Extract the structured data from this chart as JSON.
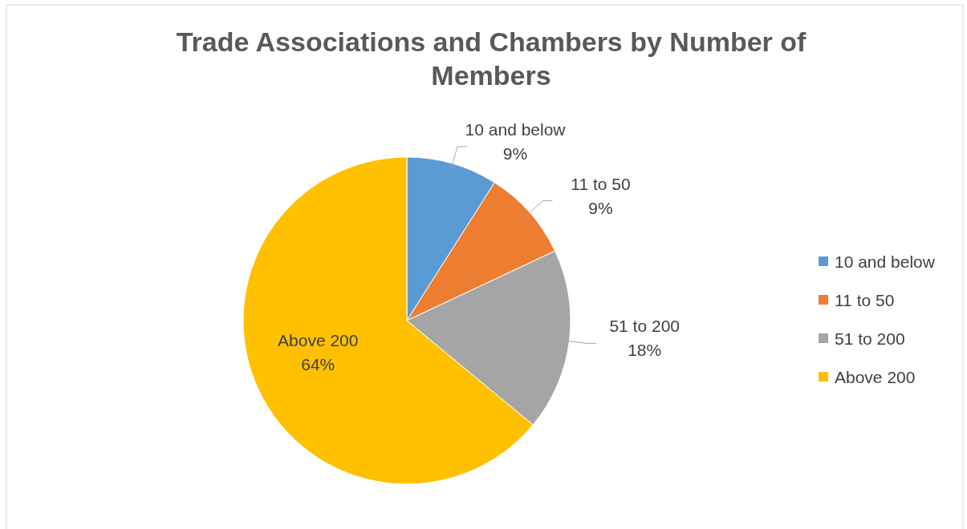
{
  "chart_data": {
    "type": "pie",
    "title": "Trade Associations and Chambers by Number of Members",
    "categories": [
      "10 and below",
      "11 to 50",
      "51 to 200",
      "Above 200"
    ],
    "values": [
      9,
      9,
      18,
      64
    ],
    "colors": [
      "#5b9bd5",
      "#ed7d31",
      "#a5a5a5",
      "#ffc000"
    ],
    "value_labels": [
      "9%",
      "9%",
      "18%",
      "64%"
    ],
    "legend": "right"
  }
}
